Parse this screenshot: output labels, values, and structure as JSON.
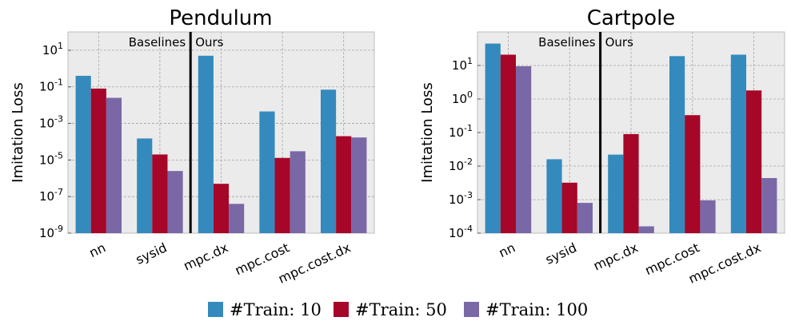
{
  "chart_data": [
    {
      "type": "bar",
      "title": "Pendulum",
      "ylabel": "Imitation Loss",
      "yscale": "log",
      "ylim": [
        1e-09,
        100
      ],
      "yticks": [
        {
          "base": "10",
          "exp": "1"
        },
        {
          "base": "10",
          "exp": "-1"
        },
        {
          "base": "10",
          "exp": "-3"
        },
        {
          "base": "10",
          "exp": "-5"
        },
        {
          "base": "10",
          "exp": "-7"
        },
        {
          "base": "10",
          "exp": "-9"
        }
      ],
      "grid": true,
      "categories": [
        "nn",
        "sysid",
        "mpc.dx",
        "mpc.cost",
        "mpc.cost.dx"
      ],
      "series": [
        {
          "name": "#Train: 10",
          "color": "#348ABD",
          "values": [
            0.4,
            0.00015,
            5.0,
            0.0045,
            0.07
          ]
        },
        {
          "name": "#Train: 50",
          "color": "#A60628",
          "values": [
            0.08,
            2e-05,
            5e-07,
            1.3e-05,
            0.0002
          ]
        },
        {
          "name": "#Train: 100",
          "color": "#7A68A6",
          "values": [
            0.025,
            2.5e-06,
            4e-08,
            3e-05,
            0.00017
          ]
        }
      ],
      "annotations": {
        "left": "Baselines",
        "right": "Ours"
      }
    },
    {
      "type": "bar",
      "title": "Cartpole",
      "ylabel": "Imitation Loss",
      "yscale": "log",
      "ylim": [
        0.0001,
        100
      ],
      "yticks": [
        {
          "base": "10",
          "exp": "1"
        },
        {
          "base": "10",
          "exp": "0"
        },
        {
          "base": "10",
          "exp": "-1"
        },
        {
          "base": "10",
          "exp": "-2"
        },
        {
          "base": "10",
          "exp": "-3"
        },
        {
          "base": "10",
          "exp": "-4"
        }
      ],
      "grid": true,
      "categories": [
        "nn",
        "sysid",
        "mpc.dx",
        "mpc.cost",
        "mpc.cost.dx"
      ],
      "series": [
        {
          "name": "#Train: 10",
          "color": "#348ABD",
          "values": [
            45,
            0.016,
            0.022,
            19,
            21
          ]
        },
        {
          "name": "#Train: 50",
          "color": "#A60628",
          "values": [
            21,
            0.0032,
            0.09,
            0.33,
            1.8
          ]
        },
        {
          "name": "#Train: 100",
          "color": "#7A68A6",
          "values": [
            9.5,
            0.0008,
            0.00016,
            0.00095,
            0.0044
          ]
        }
      ],
      "annotations": {
        "left": "Baselines",
        "right": "Ours"
      }
    }
  ],
  "legend": {
    "position": "bottom",
    "items": [
      {
        "label": "#Train: 10",
        "color": "#348ABD"
      },
      {
        "label": "#Train: 50",
        "color": "#A60628"
      },
      {
        "label": "#Train: 100",
        "color": "#7A68A6"
      }
    ]
  }
}
